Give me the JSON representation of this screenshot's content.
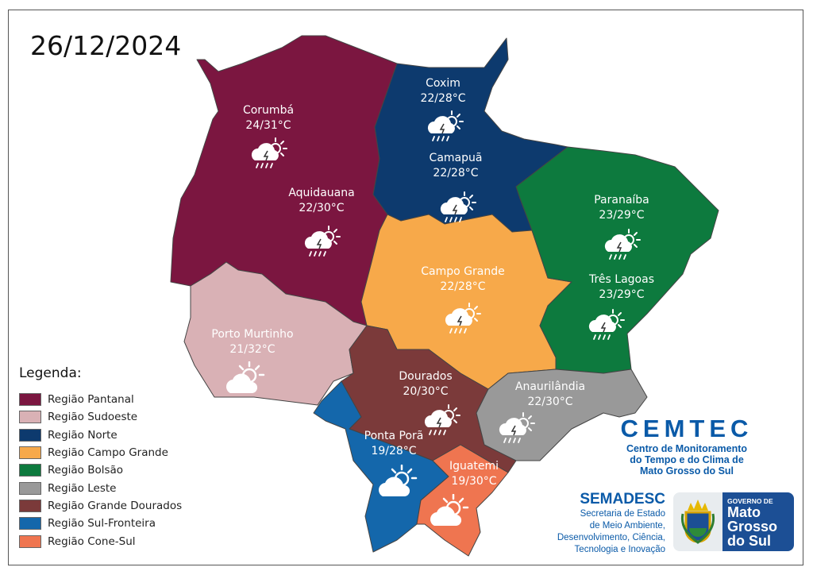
{
  "date": "26/12/2024",
  "colors": {
    "pantanal": "#7b1640",
    "sudoeste": "#d9b1b5",
    "norte": "#0d3a6e",
    "campo_grande": "#f7a94a",
    "bolsao": "#0d7a3e",
    "leste": "#999999",
    "grande_dourados": "#7b3a3a",
    "sul_fronteira": "#1467ab",
    "cone_sul": "#ef7550"
  },
  "cities": [
    {
      "name": "Corumbá",
      "temp": "24/31°C",
      "icon": "sun-cloud-rain-thunder-icon"
    },
    {
      "name": "Aquidauana",
      "temp": "22/30°C",
      "icon": "sun-cloud-rain-thunder-icon"
    },
    {
      "name": "Coxim",
      "temp": "22/28°C",
      "icon": "sun-cloud-rain-thunder-icon"
    },
    {
      "name": "Camapuã",
      "temp": "22/28°C",
      "icon": "sun-cloud-rain-thunder-icon"
    },
    {
      "name": "Paranaíba",
      "temp": "23/29°C",
      "icon": "sun-cloud-rain-thunder-icon"
    },
    {
      "name": "Três Lagoas",
      "temp": "23/29°C",
      "icon": "sun-cloud-rain-thunder-icon"
    },
    {
      "name": "Campo Grande",
      "temp": "22/28°C",
      "icon": "sun-cloud-rain-thunder-icon"
    },
    {
      "name": "Porto Murtinho",
      "temp": "21/32°C",
      "icon": "partly-cloudy-icon"
    },
    {
      "name": "Dourados",
      "temp": "20/30°C",
      "icon": "sun-cloud-rain-thunder-icon"
    },
    {
      "name": "Anaurilândia",
      "temp": "22/30°C",
      "icon": "sun-cloud-rain-thunder-icon"
    },
    {
      "name": "Ponta Porã",
      "temp": "19/28°C",
      "icon": "partly-cloudy-icon"
    },
    {
      "name": "Iguatemi",
      "temp": "19/30°C",
      "icon": "partly-cloudy-icon"
    }
  ],
  "legend": {
    "title": "Legenda:",
    "items": [
      {
        "label": "Região Pantanal",
        "color": "#7b1640"
      },
      {
        "label": "Região Sudoeste",
        "color": "#d9b1b5"
      },
      {
        "label": "Região Norte",
        "color": "#0d3a6e"
      },
      {
        "label": "Região Campo Grande",
        "color": "#f7a94a"
      },
      {
        "label": "Região Bolsão",
        "color": "#0d7a3e"
      },
      {
        "label": "Região Leste",
        "color": "#999999"
      },
      {
        "label": "Região Grande Dourados",
        "color": "#7b3a3a"
      },
      {
        "label": "Região Sul-Fronteira",
        "color": "#1467ab"
      },
      {
        "label": "Região Cone-Sul",
        "color": "#ef7550"
      }
    ]
  },
  "cemtec": {
    "title": "CEMTEC",
    "line1": "Centro de Monitoramento",
    "line2": "do Tempo e do Clima de",
    "line3": "Mato Grosso do Sul"
  },
  "semadesc": {
    "title": "SEMADESC",
    "line1": "Secretaria de Estado",
    "line2": "de Meio Ambiente,",
    "line3": "Desenvolvimento, Ciência,",
    "line4": "Tecnologia e Inovação"
  },
  "government": {
    "line1": "GOVERNO DE",
    "line2": "Mato",
    "line3": "Grosso",
    "line4": "do Sul"
  }
}
